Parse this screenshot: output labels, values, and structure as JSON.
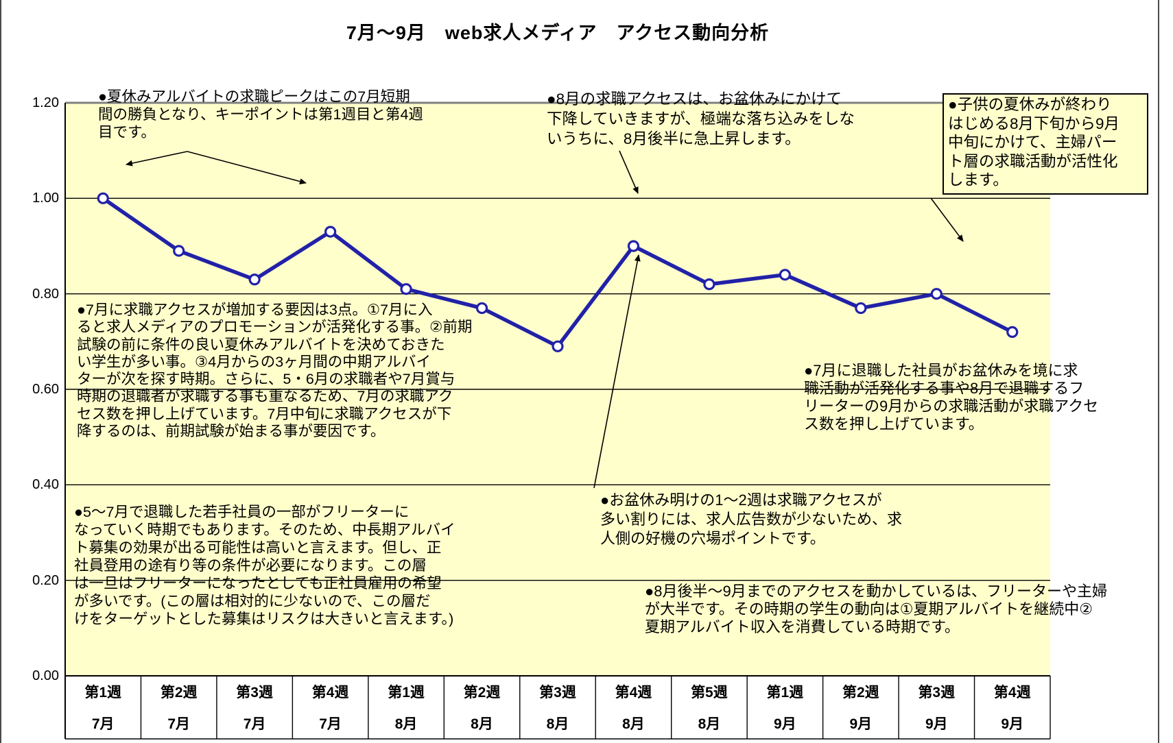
{
  "title": "7月～9月　web求人メディア　アクセス動向分析",
  "chart_data": {
    "type": "line",
    "title": "7月～9月　web求人メディア　アクセス動向分析",
    "x_axis": {
      "week_labels": [
        "第1週",
        "第2週",
        "第3週",
        "第4週",
        "第1週",
        "第2週",
        "第3週",
        "第4週",
        "第5週",
        "第1週",
        "第2週",
        "第3週",
        "第4週"
      ],
      "month_labels": [
        "7月",
        "7月",
        "7月",
        "7月",
        "8月",
        "8月",
        "8月",
        "8月",
        "8月",
        "9月",
        "9月",
        "9月",
        "9月"
      ]
    },
    "y_axis": {
      "range": [
        0,
        1.2
      ],
      "ticks": [
        1.2,
        1.0,
        0.8,
        0.6,
        0.4,
        0.2,
        0.0
      ],
      "tick_labels": [
        "1.20",
        "1.00",
        "0.80",
        "0.60",
        "0.40",
        "0.20",
        "0.00"
      ]
    },
    "values": [
      1.0,
      0.89,
      0.83,
      0.93,
      0.81,
      0.77,
      0.69,
      0.9,
      0.82,
      0.84,
      0.77,
      0.8,
      0.72
    ],
    "grid": true,
    "legend": false,
    "plot_bg": "#ffffcc",
    "grid_color": "#000000",
    "top_border_color": "#808080",
    "line_color": "#2121a8",
    "marker_fill": "#ffffff",
    "marker_stroke": "#2121a8"
  },
  "annotations": {
    "july_peak": "●夏休みアルバイトの求職ピークはこの7月短期\n間の勝負となり、キーポイントは第1週目と第4週\n目です。",
    "august_drop_rise": "●8月の求職アクセスは、お盆休みにかけて\n下降していきますが、極端な落ち込みをしな\nいうちに、8月後半に急上昇します。",
    "housewife_activity": "●子供の夏休みが終わり\nはじめる8月下旬から9月\n中旬にかけて、主婦パー\nト層の求職活動が活性化\nします。",
    "july_increase_factors": "●7月に求職アクセスが増加する要因は3点。①7月に入\nると求人メディアのプロモーションが活発化する事。②前期\n試験の前に条件の良い夏休みアルバイトを決めておきた\nい学生が多い事。③4月からの3ヶ月間の中期アルバイ\nターが次を探す時期。さらに、5・6月の求職者や7月賞与\n時期の退職者が求職する事も重なるため、7月の求職アク\nセス数を押し上げています。7月中旬に求職アクセスが下\n降するのは、前期試験が始まる事が要因です。",
    "july_resignees": "●7月に退職した社員がお盆休みを境に求\n職活動が活発化する事や8月で退職するフ\nリーターの9月からの求職活動が求職アクセ\nス数を押し上げています。",
    "freeter_transition": "●5～7月で退職した若手社員の一部がフリーターに\nなっていく時期でもあります。そのため、中長期アルバイ\nト募集の効果が出る可能性は高いと言えます。但し、正\n社員登用の途有り等の条件が必要になります。この層\nは一旦はフリーターになったとしても正社員雇用の希望\nが多いです。(この層は相対的に少ないので、この層だ\nけをターゲットとした募集はリスクは大きいと言えます。)",
    "post_obon_opportunity": "●お盆休み明けの1～2週は求職アクセスが\n多い割りには、求人広告数が少ないため、求\n人側の好機の穴場ポイントです。",
    "late_summer_drivers": "●8月後半～9月までのアクセスを動かしているは、フリーターや主婦\nが大半です。その時期の学生の動向は①夏期アルバイトを継続中②\n夏期アルバイト収入を消費している時期です。"
  }
}
